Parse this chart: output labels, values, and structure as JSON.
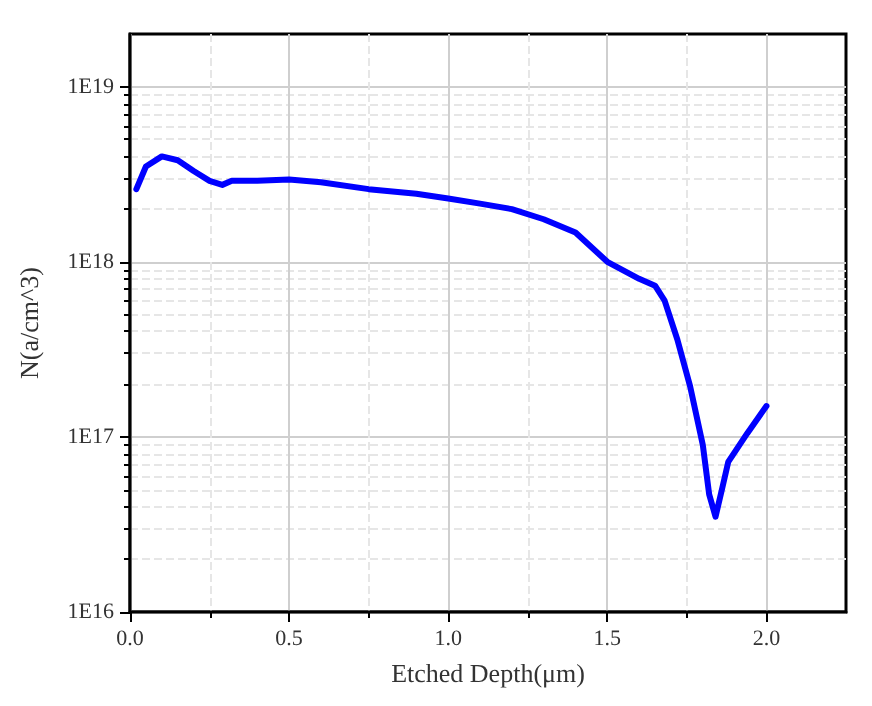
{
  "chart_data": {
    "type": "line",
    "xlabel": "Etched Depth(μm)",
    "ylabel": "N(a/cm^3)",
    "log": "y",
    "grid": true,
    "marker": "none",
    "line_style": "solid",
    "xlim": [
      0,
      2.25
    ],
    "xticks": [
      {
        "value": 0,
        "label": "0.0"
      },
      {
        "value": 0.5,
        "label": "0.5"
      },
      {
        "value": 1,
        "label": "1.0"
      },
      {
        "value": 1.5,
        "label": "1.5"
      },
      {
        "value": 2,
        "label": "2.0"
      }
    ],
    "ylim": [
      1e+16,
      2e+19
    ],
    "yticks": [
      {
        "value": 1e+16,
        "label": "1E16"
      },
      {
        "value": 1e+17,
        "label": "1E17"
      },
      {
        "value": 1e+18,
        "label": "1E18"
      },
      {
        "value": 1e+19,
        "label": "1E19"
      }
    ],
    "series": [
      {
        "color": "#0000ff",
        "x": [
          0.02,
          0.05,
          0.1,
          0.15,
          0.2,
          0.25,
          0.29,
          0.32,
          0.4,
          0.5,
          0.6,
          0.75,
          0.9,
          1.0,
          1.1,
          1.2,
          1.3,
          1.4,
          1.5,
          1.6,
          1.65,
          1.68,
          1.72,
          1.76,
          1.8,
          1.82,
          1.84,
          1.86,
          1.88,
          1.94,
          2.0
        ],
        "values": [
          2.6e+18,
          3.5e+18,
          4e+18,
          3.8e+18,
          3.3e+18,
          2.9e+18,
          2.75e+18,
          2.9e+18,
          2.9e+18,
          2.95e+18,
          2.85e+18,
          2.6e+18,
          2.45e+18,
          2.3e+18,
          2.15e+18,
          2e+18,
          1.75e+18,
          1.47e+18,
          1e+18,
          8e+17,
          7.3e+17,
          6e+17,
          3.6e+17,
          1.95e+17,
          9e+16,
          4.7e+16,
          3.5e+16,
          5e+16,
          7.2e+16,
          1.05e+17,
          1.5e+17
        ]
      }
    ]
  }
}
